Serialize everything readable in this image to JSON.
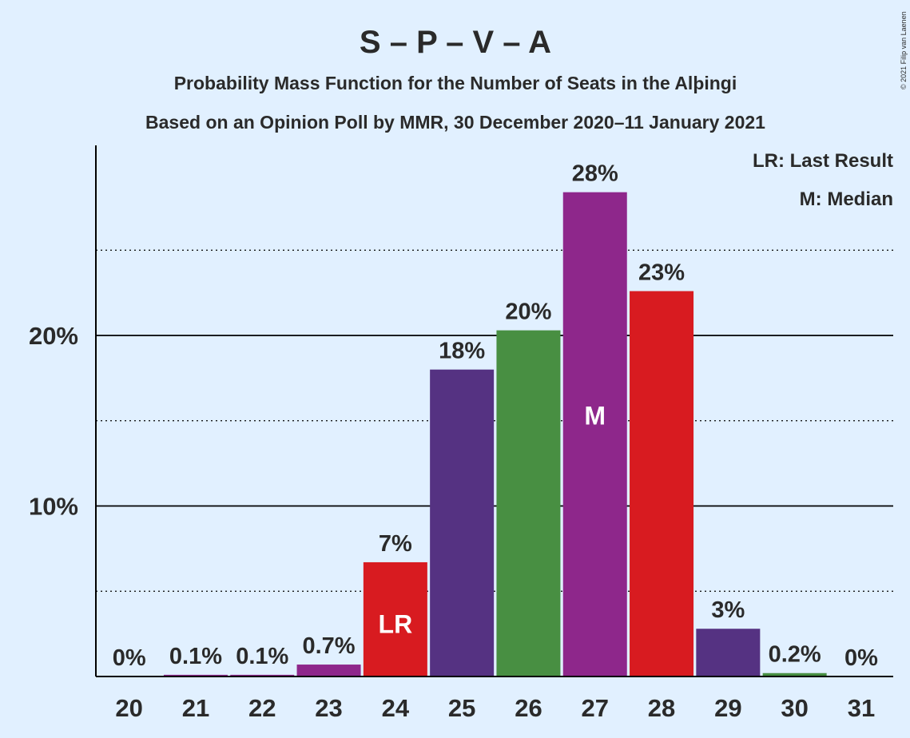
{
  "header": {
    "title": "S – P – V – A",
    "subtitle_1": "Probability Mass Function for the Number of Seats in the Alþingi",
    "subtitle_2": "Based on an Opinion Poll by MMR, 30 December 2020–11 January 2021"
  },
  "legend": {
    "last_result": "LR: Last Result",
    "median": "M: Median"
  },
  "copyright": "© 2021 Filip van Laenen",
  "chart_data": {
    "type": "bar",
    "title": "S – P – V – A",
    "categories": [
      "20",
      "21",
      "22",
      "23",
      "24",
      "25",
      "26",
      "27",
      "28",
      "29",
      "30",
      "31"
    ],
    "values": [
      0,
      0.1,
      0.1,
      0.7,
      6.7,
      18.0,
      20.3,
      28.4,
      22.6,
      2.8,
      0.2,
      0
    ],
    "value_labels": [
      "0%",
      "0.1%",
      "0.1%",
      "0.7%",
      "7%",
      "18%",
      "20%",
      "28%",
      "23%",
      "3%",
      "0.2%",
      "0%"
    ],
    "colors": [
      "#8e278b",
      "#8e278b",
      "#8e278b",
      "#8e278b",
      "#d81b20",
      "#553282",
      "#488f42",
      "#8e278b",
      "#d81b20",
      "#553282",
      "#488f42",
      "#8e278b"
    ],
    "markers": {
      "24": "LR",
      "27": "M"
    },
    "ylim": [
      0,
      31
    ],
    "yticks": [
      {
        "value": 10,
        "label": "10%"
      },
      {
        "value": 20,
        "label": "20%"
      }
    ],
    "minor_gridlines": [
      5,
      15,
      25
    ],
    "xlabel": "",
    "ylabel": "",
    "grid": true,
    "legend_position": "top-right"
  }
}
